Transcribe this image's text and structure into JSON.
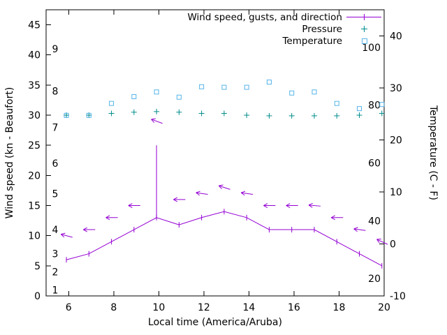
{
  "chart": {
    "legend": {
      "wind_label": "Wind speed, gusts, and direction",
      "pressure_label": "Pressure",
      "temperature_label": "Temperature"
    },
    "axes": {
      "x_label": "Local time (America/Aruba)",
      "y_left_label": "Wind speed (kn - Beaufort)",
      "y_right_label": "Temperature (C - F)"
    }
  },
  "chart_data": {
    "type": "line",
    "title": "",
    "xlabel": "Local time (America/Aruba)",
    "x_axis": {
      "range": [
        5,
        20
      ],
      "ticks": [
        6,
        8,
        10,
        12,
        14,
        16,
        18,
        20
      ]
    },
    "y_left_axis": {
      "label": "Wind speed (kn - Beaufort)",
      "range": [
        0,
        47.5
      ],
      "ticks": [
        0,
        5,
        10,
        15,
        20,
        25,
        30,
        35,
        40,
        45
      ]
    },
    "y_right_axis": {
      "label": "Temperature (C - F)",
      "range": [
        -10,
        45
      ],
      "ticks": [
        -10,
        0,
        10,
        20,
        30,
        40
      ]
    },
    "beaufort_scale": {
      "labels": [
        "1",
        "2",
        "3",
        "4",
        "5",
        "6",
        "7",
        "8",
        "9"
      ],
      "knots": [
        1,
        4,
        7,
        11,
        17,
        22,
        28,
        34,
        41
      ]
    },
    "fahrenheit_scale": {
      "labels": [
        "20",
        "40",
        "60",
        "80",
        "100"
      ],
      "fahrenheit": [
        20,
        40,
        60,
        80,
        100
      ]
    },
    "x": [
      5.9,
      6.9,
      7.9,
      8.9,
      9.9,
      10.9,
      11.9,
      12.9,
      13.9,
      14.9,
      15.9,
      16.9,
      17.9,
      18.9,
      19.9
    ],
    "series": [
      {
        "name": "wind_speed_kn",
        "color": "#9400d3",
        "values": [
          6,
          7,
          9,
          11,
          13,
          11.8,
          13,
          14,
          13,
          11,
          11,
          11,
          9,
          7,
          5
        ]
      },
      {
        "name": "gusts_kn",
        "color": "#9400d3",
        "values": [
          6,
          7,
          9,
          11,
          25,
          11.8,
          13,
          14,
          13,
          11,
          11,
          11,
          9,
          7,
          5
        ]
      },
      {
        "name": "direction_arrow_height_kn",
        "color": "#9400d3",
        "values": [
          10,
          11,
          13,
          15,
          29,
          16,
          17,
          18,
          17,
          15,
          15,
          15,
          13,
          11,
          9
        ]
      },
      {
        "name": "direction_arrow_tilt_deg",
        "values": [
          15,
          0,
          0,
          0,
          20,
          0,
          8,
          18,
          8,
          0,
          0,
          5,
          0,
          8,
          25
        ]
      },
      {
        "name": "pressure_plotted_on_kn_axis",
        "color": "#008b8b",
        "values": [
          30,
          30,
          30.3,
          30.5,
          30.6,
          30.5,
          30.3,
          30.3,
          30,
          29.9,
          29.9,
          29.9,
          29.9,
          30,
          30.3
        ]
      },
      {
        "name": "temperature_C",
        "color": "#56b4e9",
        "values": [
          24.7,
          24.7,
          27,
          28.3,
          29.2,
          28.2,
          30.2,
          30.1,
          30.1,
          31.1,
          29,
          29.2,
          27,
          26,
          26.8
        ]
      }
    ],
    "legend_position": "top-right",
    "grid": false,
    "colors": {
      "wind": "#9400d3",
      "pressure": "#008b8b",
      "temperature": "#56b4e9",
      "axis": "#000000",
      "background": "#ffffff"
    }
  }
}
